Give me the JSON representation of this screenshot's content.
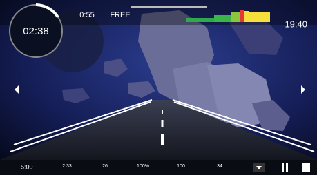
{
  "timer": {
    "elapsed": "02:38"
  },
  "top": {
    "segment_time": "0:55",
    "mode": "FREE",
    "clock": "19:40"
  },
  "bottom": {
    "duration": "5:00",
    "stats": [
      "2:33",
      "26",
      "100%",
      "100",
      "34"
    ]
  }
}
